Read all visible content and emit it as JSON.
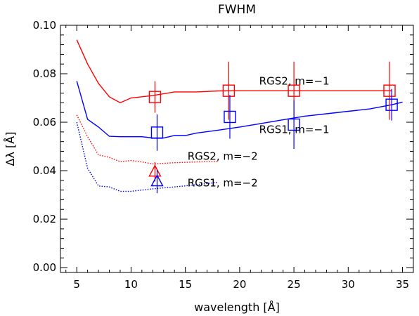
{
  "chart_data": {
    "type": "line",
    "title": "FWHM",
    "xlabel": "wavelength [Å]",
    "ylabel": "Δλ [Å]",
    "xlim": [
      3.5,
      36.0
    ],
    "ylim": [
      -0.002,
      0.1
    ],
    "xticks": [
      5,
      10,
      15,
      20,
      25,
      30,
      35
    ],
    "xtick_labels": [
      "5",
      "10",
      "15",
      "20",
      "25",
      "30",
      "35"
    ],
    "yticks": [
      0.0,
      0.02,
      0.04,
      0.06,
      0.08,
      0.1
    ],
    "ytick_labels": [
      "0.00",
      "0.02",
      "0.04",
      "0.06",
      "0.08",
      "0.10"
    ],
    "grid": false,
    "series": [
      {
        "name": "RGS2, m=−1",
        "color": "#ff0000",
        "style": "solid",
        "x": [
          5,
          6,
          7,
          8,
          9,
          10,
          11,
          12,
          14,
          16,
          18,
          20,
          22,
          24,
          26,
          28,
          30,
          32,
          34
        ],
        "y": [
          0.094,
          0.084,
          0.076,
          0.0705,
          0.068,
          0.07,
          0.0705,
          0.071,
          0.0725,
          0.0725,
          0.0729,
          0.073,
          0.073,
          0.073,
          0.073,
          0.073,
          0.073,
          0.073,
          0.073
        ]
      },
      {
        "name": "RGS1, m=−1",
        "color": "#0000ff",
        "style": "solid",
        "x": [
          5,
          6,
          7,
          8,
          9,
          10,
          11,
          12,
          13,
          14,
          15,
          16,
          18,
          20,
          22,
          24,
          26,
          28,
          30,
          32,
          34,
          35
        ],
        "y": [
          0.077,
          0.0612,
          0.058,
          0.0542,
          0.054,
          0.054,
          0.054,
          0.0535,
          0.0535,
          0.0545,
          0.0545,
          0.0555,
          0.0567,
          0.058,
          0.0595,
          0.061,
          0.0625,
          0.0635,
          0.0645,
          0.0655,
          0.0672,
          0.0683
        ]
      },
      {
        "name": "RGS2, m=−2",
        "color": "#ff0000",
        "style": "dotted",
        "x": [
          5,
          6,
          7,
          8,
          9,
          10,
          11,
          12,
          14,
          16,
          18
        ],
        "y": [
          0.063,
          0.054,
          0.0465,
          0.0455,
          0.0437,
          0.0442,
          0.0436,
          0.0428,
          0.0433,
          0.0436,
          0.0438
        ]
      },
      {
        "name": "RGS1, m=−2",
        "color": "#0000ff",
        "style": "dotted",
        "x": [
          5,
          6,
          7,
          8,
          9,
          10,
          11,
          12,
          14,
          16,
          18
        ],
        "y": [
          0.06,
          0.041,
          0.0337,
          0.0333,
          0.0315,
          0.0315,
          0.032,
          0.0325,
          0.0333,
          0.0342,
          0.0352
        ]
      }
    ],
    "measurements": [
      {
        "series": "RGS2, m=−1",
        "marker": "square",
        "color": "#ff0000",
        "x": 12.2,
        "y": 0.0704,
        "yerr": [
          0.0065,
          0.0065
        ]
      },
      {
        "series": "RGS2, m=−1",
        "marker": "square",
        "color": "#ff0000",
        "x": 19.0,
        "y": 0.073,
        "yerr": [
          0.012,
          0.012
        ]
      },
      {
        "series": "RGS2, m=−1",
        "marker": "square",
        "color": "#ff0000",
        "x": 25.0,
        "y": 0.073,
        "yerr": [
          0.012,
          0.012
        ]
      },
      {
        "series": "RGS2, m=−1",
        "marker": "square",
        "color": "#ff0000",
        "x": 33.8,
        "y": 0.073,
        "yerr": [
          0.012,
          0.012
        ]
      },
      {
        "series": "RGS1, m=−1",
        "marker": "square",
        "color": "#0000ff",
        "x": 12.4,
        "y": 0.0557,
        "yerr": [
          0.0075,
          0.0075
        ]
      },
      {
        "series": "RGS1, m=−1",
        "marker": "square",
        "color": "#0000ff",
        "x": 19.1,
        "y": 0.0622,
        "yerr": [
          0.009,
          0.009
        ]
      },
      {
        "series": "RGS1, m=−1",
        "marker": "square",
        "color": "#0000ff",
        "x": 25.0,
        "y": 0.059,
        "yerr": [
          0.01,
          0.01
        ]
      },
      {
        "series": "RGS1, m=−1",
        "marker": "square",
        "color": "#0000ff",
        "x": 34.0,
        "y": 0.0672,
        "yerr": [
          0.0065,
          0.0065
        ]
      },
      {
        "series": "RGS2, m=−2",
        "marker": "triangle",
        "color": "#ff0000",
        "x": 12.2,
        "y": 0.0395,
        "yerr": [
          0.004,
          0.004
        ]
      },
      {
        "series": "RGS1, m=−2",
        "marker": "triangle",
        "color": "#0000ff",
        "x": 12.4,
        "y": 0.0355,
        "yerr": [
          0.0048,
          0.0048
        ]
      }
    ],
    "annotations": [
      {
        "text": "RGS2, m=−1",
        "x": 21.8,
        "y": 0.0755
      },
      {
        "text": "RGS1, m=−1",
        "x": 21.8,
        "y": 0.0555
      },
      {
        "text": "RGS2, m=−2",
        "x": 15.2,
        "y": 0.0445
      },
      {
        "text": "RGS1, m=−2",
        "x": 15.2,
        "y": 0.0335
      }
    ]
  }
}
